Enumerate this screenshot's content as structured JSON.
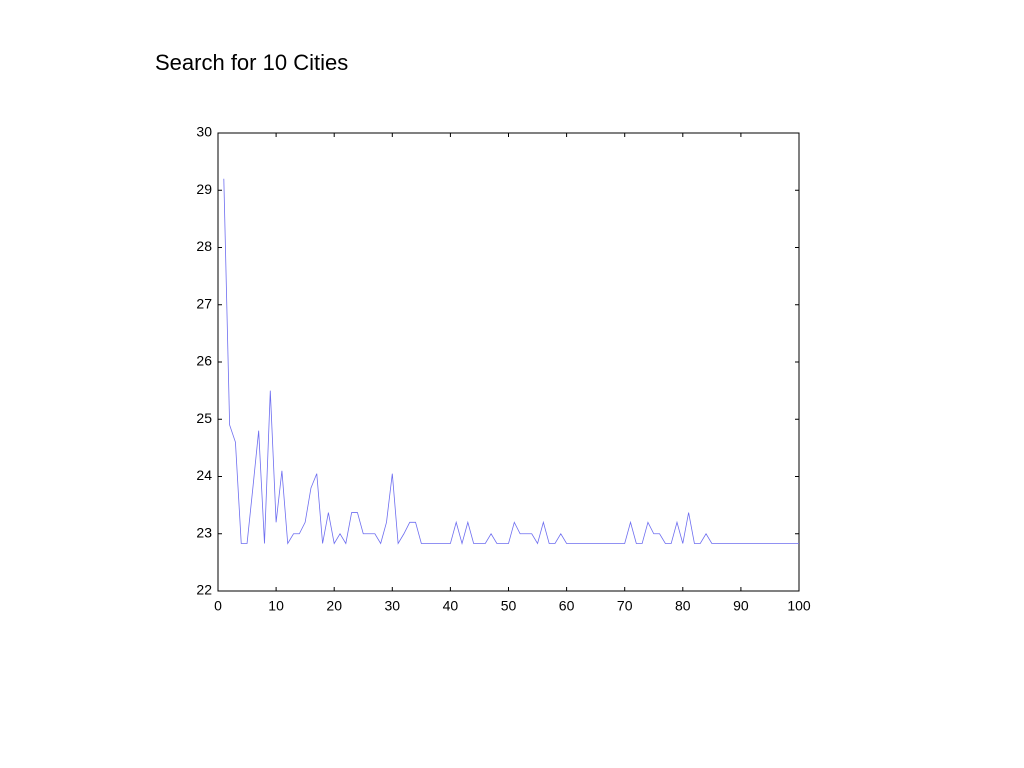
{
  "chart_data": {
    "type": "line",
    "title": "Search for 10 Cities",
    "x": [
      1,
      2,
      3,
      4,
      5,
      6,
      7,
      8,
      9,
      10,
      11,
      12,
      13,
      14,
      15,
      16,
      17,
      18,
      19,
      20,
      21,
      22,
      23,
      24,
      25,
      26,
      27,
      28,
      29,
      30,
      31,
      32,
      33,
      34,
      35,
      36,
      37,
      38,
      39,
      40,
      41,
      42,
      43,
      44,
      45,
      46,
      47,
      48,
      49,
      50,
      51,
      52,
      53,
      54,
      55,
      56,
      57,
      58,
      59,
      60,
      61,
      62,
      63,
      64,
      65,
      66,
      67,
      68,
      69,
      70,
      71,
      72,
      73,
      74,
      75,
      76,
      77,
      78,
      79,
      80,
      81,
      82,
      83,
      84,
      85,
      86,
      87,
      88,
      89,
      90,
      91,
      92,
      93,
      94,
      95,
      96,
      97,
      98,
      99,
      100
    ],
    "series": [
      {
        "color": "#6e6ef0",
        "values": [
          29.2,
          24.9,
          24.6,
          22.83,
          22.83,
          23.8,
          24.8,
          22.83,
          25.5,
          23.2,
          24.1,
          22.83,
          23,
          23,
          23.2,
          23.8,
          24.05,
          22.83,
          23.37,
          22.83,
          23,
          22.83,
          23.37,
          23.37,
          23,
          23,
          23,
          22.83,
          23.2,
          24.05,
          22.83,
          23,
          23.2,
          23.2,
          22.83,
          22.83,
          22.83,
          22.83,
          22.83,
          22.83,
          23.2,
          22.83,
          23.2,
          22.83,
          22.83,
          22.83,
          23,
          22.83,
          22.83,
          22.83,
          23.2,
          23,
          23,
          23,
          22.83,
          23.2,
          22.83,
          22.83,
          23,
          22.83,
          22.83,
          22.83,
          22.83,
          22.83,
          22.83,
          22.83,
          22.83,
          22.83,
          22.83,
          22.83,
          23.2,
          22.83,
          22.83,
          23.2,
          23,
          23,
          22.83,
          22.83,
          23.2,
          22.83,
          23.37,
          22.83,
          22.83,
          23,
          22.83,
          22.83,
          22.83,
          22.83,
          22.83,
          22.83,
          22.83,
          22.83,
          22.83,
          22.83,
          22.83,
          22.83,
          22.83,
          22.83,
          22.83,
          22.83
        ]
      }
    ],
    "xlim": [
      0,
      100
    ],
    "xticks": [
      0,
      10,
      20,
      30,
      40,
      50,
      60,
      70,
      80,
      90,
      100
    ],
    "ylim": [
      22,
      30
    ],
    "yticks": [
      22,
      23,
      24,
      25,
      26,
      27,
      28,
      29,
      30
    ]
  }
}
